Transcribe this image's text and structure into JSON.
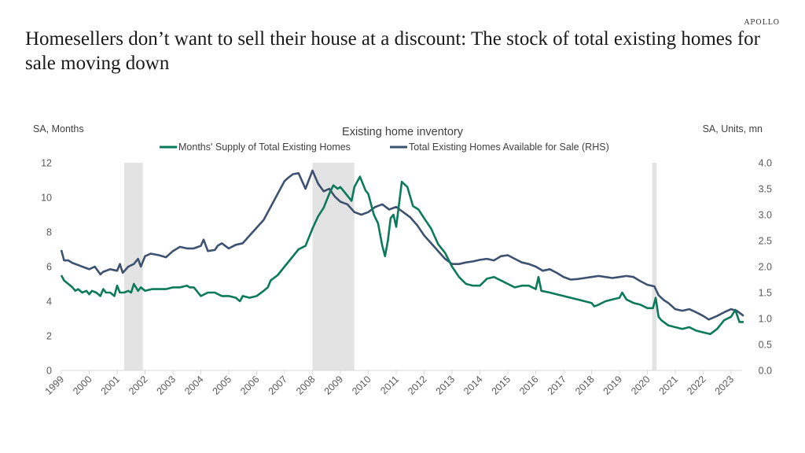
{
  "brand": "APOLLO",
  "headline": "Homesellers don’t want to sell their house at a discount: The stock of  total existing homes for sale moving down",
  "chart_data": {
    "type": "line",
    "title": "Existing home inventory",
    "ylabel_left": "SA, Months",
    "ylabel_right": "SA, Units, mn",
    "ylim_left": [
      0,
      12
    ],
    "ylim_right": [
      0,
      4
    ],
    "yticks_left": [
      "0",
      "2",
      "4",
      "6",
      "8",
      "10",
      "12"
    ],
    "yticks_right": [
      "0.0",
      "0.5",
      "1.0",
      "1.5",
      "2.0",
      "2.5",
      "3.0",
      "3.5",
      "4.0"
    ],
    "xlim": [
      1999,
      2023.45
    ],
    "xticks": [
      "1999",
      "2000",
      "2001",
      "2002",
      "2003",
      "2004",
      "2005",
      "2006",
      "2007",
      "2008",
      "2009",
      "2010",
      "2011",
      "2012",
      "2013",
      "2014",
      "2015",
      "2016",
      "2017",
      "2018",
      "2019",
      "2020",
      "2021",
      "2022",
      "2023"
    ],
    "grid": false,
    "legend_position": "top-center",
    "recessions": [
      [
        2001.25,
        2001.92
      ],
      [
        2008.0,
        2009.5
      ],
      [
        2020.17,
        2020.33
      ]
    ],
    "series": [
      {
        "name": "Months' Supply of Total Existing Homes",
        "axis": "left",
        "color": "#0b7a5a",
        "x": [
          1999.0,
          1999.1,
          1999.25,
          1999.4,
          1999.5,
          1999.6,
          1999.75,
          1999.9,
          2000.0,
          2000.1,
          2000.25,
          2000.4,
          2000.5,
          2000.6,
          2000.75,
          2000.9,
          2001.0,
          2001.1,
          2001.25,
          2001.4,
          2001.5,
          2001.6,
          2001.75,
          2001.85,
          2002.0,
          2002.25,
          2002.5,
          2002.75,
          2003.0,
          2003.25,
          2003.5,
          2003.6,
          2003.75,
          2004.0,
          2004.25,
          2004.5,
          2004.75,
          2005.0,
          2005.25,
          2005.4,
          2005.5,
          2005.75,
          2006.0,
          2006.25,
          2006.4,
          2006.5,
          2006.75,
          2007.0,
          2007.25,
          2007.4,
          2007.5,
          2007.75,
          2008.0,
          2008.2,
          2008.4,
          2008.6,
          2008.75,
          2008.9,
          2009.0,
          2009.2,
          2009.4,
          2009.5,
          2009.7,
          2009.9,
          2010.0,
          2010.1,
          2010.2,
          2010.35,
          2010.5,
          2010.6,
          2010.7,
          2010.8,
          2010.9,
          2011.0,
          2011.2,
          2011.4,
          2011.6,
          2011.8,
          2012.0,
          2012.25,
          2012.5,
          2012.75,
          2013.0,
          2013.25,
          2013.5,
          2013.75,
          2014.0,
          2014.25,
          2014.5,
          2014.75,
          2015.0,
          2015.25,
          2015.5,
          2015.75,
          2016.0,
          2016.1,
          2016.2,
          2016.5,
          2016.75,
          2017.0,
          2017.25,
          2017.5,
          2017.75,
          2018.0,
          2018.1,
          2018.25,
          2018.5,
          2018.75,
          2019.0,
          2019.1,
          2019.25,
          2019.5,
          2019.75,
          2020.0,
          2020.2,
          2020.3,
          2020.4,
          2020.5,
          2020.75,
          2021.0,
          2021.25,
          2021.5,
          2021.75,
          2022.0,
          2022.25,
          2022.5,
          2022.75,
          2023.0,
          2023.15,
          2023.3,
          2023.45
        ],
        "values": [
          5.5,
          5.2,
          5.0,
          4.8,
          4.6,
          4.7,
          4.5,
          4.6,
          4.4,
          4.6,
          4.5,
          4.3,
          4.7,
          4.5,
          4.5,
          4.3,
          4.9,
          4.5,
          4.5,
          4.6,
          4.5,
          5.0,
          4.6,
          4.8,
          4.6,
          4.7,
          4.7,
          4.7,
          4.8,
          4.8,
          4.9,
          4.8,
          4.8,
          4.3,
          4.5,
          4.5,
          4.3,
          4.3,
          4.2,
          4.0,
          4.3,
          4.2,
          4.3,
          4.6,
          4.8,
          5.2,
          5.5,
          6.0,
          6.5,
          6.8,
          7.0,
          7.2,
          8.2,
          8.9,
          9.4,
          10.2,
          10.7,
          10.5,
          10.6,
          10.2,
          9.8,
          10.6,
          11.2,
          10.4,
          10.2,
          9.6,
          9.0,
          8.5,
          7.2,
          6.6,
          7.5,
          8.8,
          9.0,
          8.3,
          10.9,
          10.6,
          9.5,
          9.3,
          8.8,
          8.2,
          7.3,
          6.8,
          6.0,
          5.4,
          5.0,
          4.9,
          4.9,
          5.3,
          5.4,
          5.2,
          5.0,
          4.8,
          4.9,
          4.9,
          4.7,
          5.4,
          4.6,
          4.5,
          4.4,
          4.3,
          4.2,
          4.1,
          4.0,
          3.9,
          3.7,
          3.8,
          4.0,
          4.1,
          4.2,
          4.5,
          4.1,
          3.9,
          3.8,
          3.6,
          3.6,
          4.2,
          3.1,
          2.9,
          2.6,
          2.5,
          2.4,
          2.5,
          2.3,
          2.2,
          2.1,
          2.4,
          2.9,
          3.1,
          3.5,
          2.8,
          2.8
        ],
        "displayed": "monthly"
      },
      {
        "name": "Total Existing Homes Available for Sale (RHS)",
        "axis": "right",
        "color": "#3d5170",
        "x": [
          1999.0,
          1999.1,
          1999.25,
          1999.4,
          1999.5,
          1999.75,
          2000.0,
          2000.2,
          2000.4,
          2000.5,
          2000.75,
          2001.0,
          2001.1,
          2001.2,
          2001.4,
          2001.6,
          2001.75,
          2001.85,
          2002.0,
          2002.2,
          2002.5,
          2002.75,
          2003.0,
          2003.25,
          2003.5,
          2003.75,
          2004.0,
          2004.1,
          2004.25,
          2004.5,
          2004.6,
          2004.75,
          2005.0,
          2005.25,
          2005.5,
          2005.75,
          2006.0,
          2006.25,
          2006.5,
          2006.75,
          2007.0,
          2007.15,
          2007.3,
          2007.5,
          2007.75,
          2008.0,
          2008.2,
          2008.4,
          2008.6,
          2008.8,
          2009.0,
          2009.25,
          2009.5,
          2009.75,
          2010.0,
          2010.25,
          2010.5,
          2010.75,
          2011.0,
          2011.25,
          2011.5,
          2011.75,
          2012.0,
          2012.25,
          2012.5,
          2012.75,
          2013.0,
          2013.25,
          2013.5,
          2013.75,
          2014.0,
          2014.25,
          2014.5,
          2014.75,
          2015.0,
          2015.25,
          2015.5,
          2015.75,
          2016.0,
          2016.25,
          2016.5,
          2016.75,
          2017.0,
          2017.25,
          2017.5,
          2017.75,
          2018.0,
          2018.25,
          2018.5,
          2018.75,
          2019.0,
          2019.25,
          2019.5,
          2019.75,
          2020.0,
          2020.25,
          2020.4,
          2020.6,
          2020.75,
          2021.0,
          2021.25,
          2021.5,
          2021.75,
          2022.0,
          2022.2,
          2022.5,
          2022.75,
          2023.0,
          2023.2,
          2023.45
        ],
        "values": [
          2.32,
          2.12,
          2.12,
          2.07,
          2.05,
          2.0,
          1.95,
          2.0,
          1.85,
          1.9,
          1.95,
          1.92,
          2.05,
          1.88,
          2.0,
          2.05,
          2.15,
          2.0,
          2.2,
          2.25,
          2.22,
          2.18,
          2.3,
          2.38,
          2.35,
          2.35,
          2.4,
          2.52,
          2.3,
          2.32,
          2.4,
          2.45,
          2.35,
          2.42,
          2.45,
          2.6,
          2.75,
          2.9,
          3.15,
          3.4,
          3.65,
          3.72,
          3.78,
          3.8,
          3.5,
          3.85,
          3.6,
          3.45,
          3.5,
          3.35,
          3.25,
          3.2,
          3.05,
          3.0,
          3.05,
          3.15,
          3.2,
          3.1,
          3.15,
          3.05,
          2.95,
          2.8,
          2.6,
          2.45,
          2.3,
          2.15,
          2.05,
          2.05,
          2.08,
          2.1,
          2.13,
          2.15,
          2.12,
          2.2,
          2.22,
          2.15,
          2.08,
          2.05,
          2.0,
          1.92,
          1.95,
          1.88,
          1.8,
          1.75,
          1.76,
          1.78,
          1.8,
          1.82,
          1.8,
          1.78,
          1.8,
          1.82,
          1.8,
          1.72,
          1.65,
          1.62,
          1.45,
          1.35,
          1.3,
          1.18,
          1.15,
          1.18,
          1.12,
          1.05,
          0.98,
          1.05,
          1.12,
          1.18,
          1.15,
          1.05
        ]
      }
    ]
  }
}
